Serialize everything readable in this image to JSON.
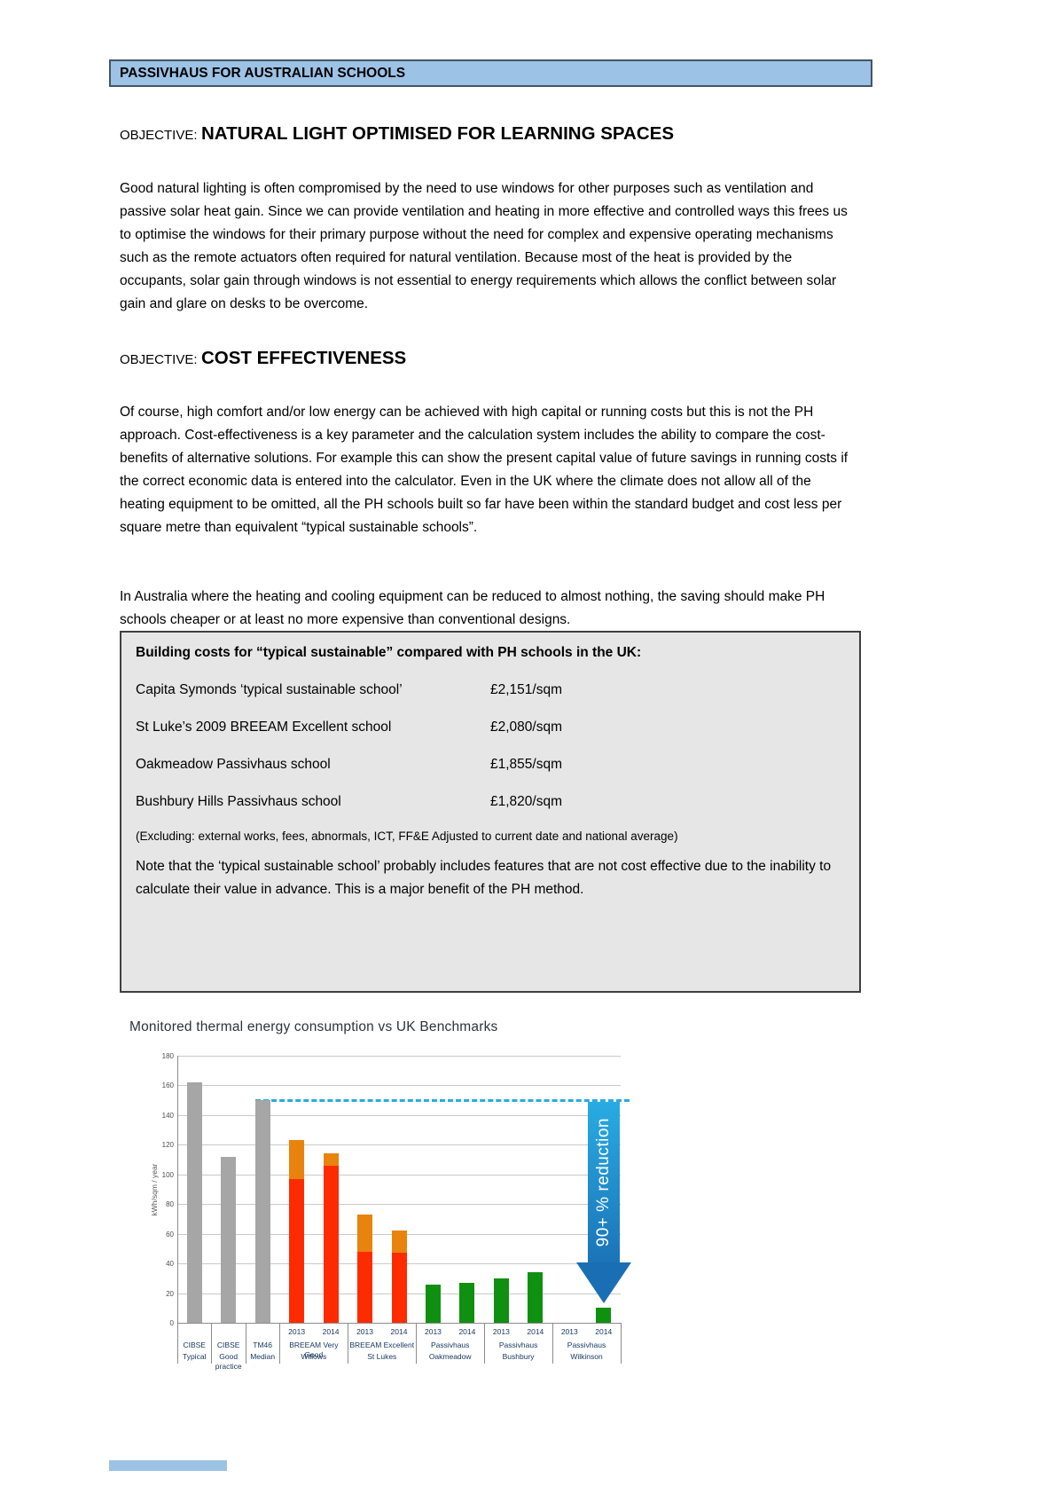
{
  "header": {
    "title": "PASSIVHAUS FOR AUSTRALIAN SCHOOLS"
  },
  "sections": [
    {
      "kicker": "OBJECTIVE:",
      "title": "NATURAL LIGHT OPTIMISED FOR LEARNING SPACES",
      "paragraphs": [
        "Good natural lighting is often compromised by the need to use windows for other purposes such as ventilation and passive solar heat gain. Since we can provide ventilation and heating in more effective and controlled ways this frees us to optimise the windows for their primary purpose without the need for complex and expensive operating mechanisms such as the remote actuators often required for natural ventilation. Because most of the heat is provided by the occupants, solar gain through windows is not essential to energy requirements which allows the conflict between solar gain and glare on desks to be overcome."
      ]
    },
    {
      "kicker": "OBJECTIVE:",
      "title": "COST EFFECTIVENESS",
      "paragraphs": [
        "Of course, high comfort and/or low energy can be achieved with high capital or running costs but this is not the PH approach. Cost-effectiveness is a key parameter and the calculation system includes the ability to compare the cost-benefits of alternative solutions. For example this can show the present capital value of future savings in running costs if the correct economic data is entered into the calculator. Even in the UK where the climate does not allow all of the heating equipment to be omitted, all the PH schools built so far have been within the standard budget and cost less per square metre than equivalent “typical sustainable schools”.",
        "In Australia where the heating and cooling equipment can be reduced to almost nothing, the saving should make PH schools cheaper or at least no more expensive than conventional designs."
      ]
    }
  ],
  "cost_box": {
    "title": "Building costs for “typical sustainable” compared with PH schools in the UK:",
    "rows": [
      {
        "name": "Capita Symonds ‘typical sustainable school’",
        "price": "£2,151/sqm"
      },
      {
        "name": "St Luke’s 2009 BREEAM Excellent school",
        "price": "£2,080/sqm"
      },
      {
        "name": "Oakmeadow Passivhaus school",
        "price": "£1,855/sqm"
      },
      {
        "name": "Bushbury Hills Passivhaus school",
        "price": "£1,820/sqm"
      }
    ],
    "exclusion_note": "(Excluding: external works, fees, abnormals, ICT, FF&E Adjusted to current date and national average)",
    "note": "Note that the ‘typical sustainable school’ probably includes features that are not cost effective due to the inability to calculate their value in advance. This is a major benefit of the PH method."
  },
  "chart_data": {
    "type": "bar",
    "title": "Monitored thermal energy consumption vs UK Benchmarks",
    "ylabel": "kWh/sqm / year",
    "ylim": [
      0,
      180
    ],
    "ytick_step": 20,
    "grid": true,
    "legend": "none",
    "benchmark_line": {
      "value": 150,
      "style": "dashed",
      "color": "#29abe2",
      "starts_at_group": 2
    },
    "reduction_arrow": {
      "label": "90+ % reduction",
      "from_value": 150,
      "to_value": 13,
      "at_group": 7,
      "at_bar": 1
    },
    "colors": {
      "gray": "#a6a6a6",
      "red": "#ff2b00",
      "orange": "#e8830d",
      "green": "#109010",
      "arrow_top": "#29abe2",
      "arrow_bottom": "#1a6fb4"
    },
    "groups": [
      {
        "cert": "CIBSE",
        "name": "Typical",
        "bars": [
          {
            "year": "",
            "segments": [
              {
                "color": "gray",
                "value": 162
              }
            ]
          }
        ]
      },
      {
        "cert": "CIBSE",
        "name": "Good practice",
        "bars": [
          {
            "year": "",
            "segments": [
              {
                "color": "gray",
                "value": 112
              }
            ]
          }
        ]
      },
      {
        "cert": "TM46",
        "name": "Median",
        "bars": [
          {
            "year": "",
            "segments": [
              {
                "color": "gray",
                "value": 150
              }
            ]
          }
        ]
      },
      {
        "cert": "BREEAM Very Good",
        "name": "Willows",
        "bars": [
          {
            "year": "2013",
            "segments": [
              {
                "color": "red",
                "value": 97
              },
              {
                "color": "orange",
                "value": 26
              }
            ]
          },
          {
            "year": "2014",
            "segments": [
              {
                "color": "red",
                "value": 106
              },
              {
                "color": "orange",
                "value": 8
              }
            ]
          }
        ]
      },
      {
        "cert": "BREEAM Excellent",
        "name": "St Lukes",
        "bars": [
          {
            "year": "2013",
            "segments": [
              {
                "color": "red",
                "value": 48
              },
              {
                "color": "orange",
                "value": 25
              }
            ]
          },
          {
            "year": "2014",
            "segments": [
              {
                "color": "red",
                "value": 47
              },
              {
                "color": "orange",
                "value": 15
              }
            ]
          }
        ]
      },
      {
        "cert": "Passivhaus",
        "name": "Oakmeadow",
        "bars": [
          {
            "year": "2013",
            "segments": [
              {
                "color": "green",
                "value": 26
              }
            ]
          },
          {
            "year": "2014",
            "segments": [
              {
                "color": "green",
                "value": 27
              }
            ]
          }
        ]
      },
      {
        "cert": "Passivhaus",
        "name": "Bushbury",
        "bars": [
          {
            "year": "2013",
            "segments": [
              {
                "color": "green",
                "value": 30
              }
            ]
          },
          {
            "year": "2014",
            "segments": [
              {
                "color": "green",
                "value": 34
              }
            ]
          }
        ]
      },
      {
        "cert": "Passivhaus",
        "name": "Wilkinson",
        "bars": [
          {
            "year": "2013",
            "segments": []
          },
          {
            "year": "2014",
            "segments": [
              {
                "color": "green",
                "value": 10
              }
            ]
          }
        ]
      }
    ]
  },
  "accent_colors": {
    "header_bg": "#9cc2e5",
    "header_border": "#44546a",
    "box_bg": "#e7e6e6",
    "box_border": "#3f3f3f",
    "footer_bar": "#9cc2e5"
  }
}
